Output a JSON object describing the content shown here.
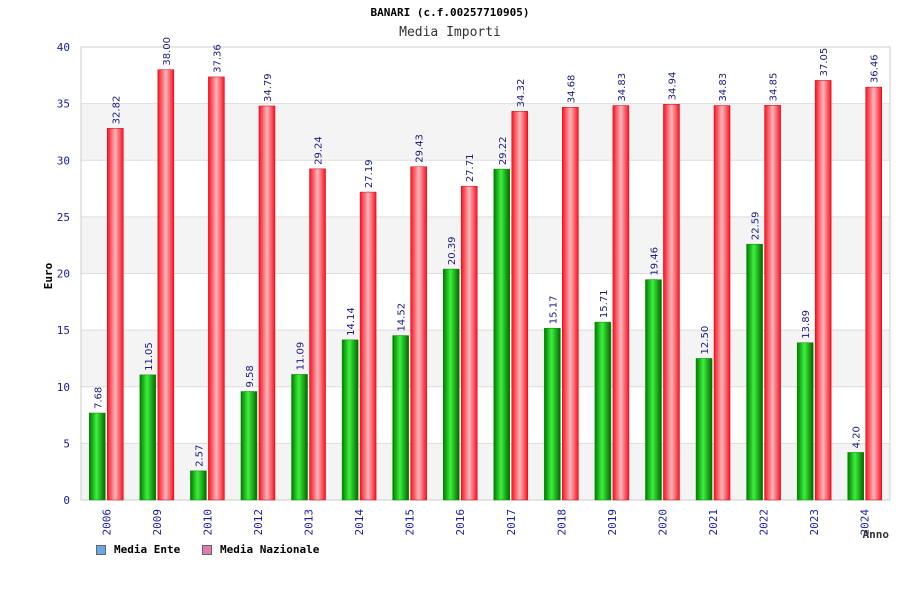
{
  "chart_data": {
    "type": "bar",
    "title": "BANARI (c.f.00257710905)",
    "subtitle": "Media Importi",
    "xlabel": "Anno",
    "ylabel": "Euro",
    "ylim": [
      0,
      40
    ],
    "yticks": [
      0,
      5,
      10,
      15,
      20,
      25,
      30,
      35,
      40
    ],
    "categories": [
      "2006",
      "2009",
      "2010",
      "2012",
      "2013",
      "2014",
      "2015",
      "2016",
      "2017",
      "2018",
      "2019",
      "2020",
      "2021",
      "2022",
      "2023",
      "2024"
    ],
    "series": [
      {
        "name": "Media Ente",
        "color": "#00b000",
        "legend_color": "#6aa6e8",
        "values": [
          7.68,
          11.05,
          2.57,
          9.58,
          11.09,
          14.14,
          14.52,
          20.39,
          29.22,
          15.17,
          15.71,
          19.46,
          12.5,
          22.59,
          13.89,
          4.2
        ],
        "labels": [
          "7.68",
          "11.05",
          "2.57",
          "9.58",
          "11.09",
          "14.14",
          "14.52",
          "20.39",
          "29.22",
          "15.17",
          "15.71",
          "19.46",
          "12.50",
          "22.59",
          "13.89",
          "4.20"
        ]
      },
      {
        "name": "Media Nazionale",
        "color": "#e8101e",
        "legend_color": "#e07ab0",
        "values": [
          32.82,
          38.0,
          37.36,
          34.79,
          29.24,
          27.19,
          29.43,
          27.71,
          34.32,
          34.68,
          34.83,
          34.94,
          34.83,
          34.85,
          37.05,
          36.46
        ],
        "labels": [
          "32.82",
          "38.00",
          "37.36",
          "34.79",
          "29.24",
          "27.19",
          "29.43",
          "27.71",
          "34.32",
          "34.68",
          "34.83",
          "34.94",
          "34.83",
          "34.85",
          "37.05",
          "36.46"
        ]
      }
    ],
    "grid": true,
    "legend": "bottom-left"
  }
}
